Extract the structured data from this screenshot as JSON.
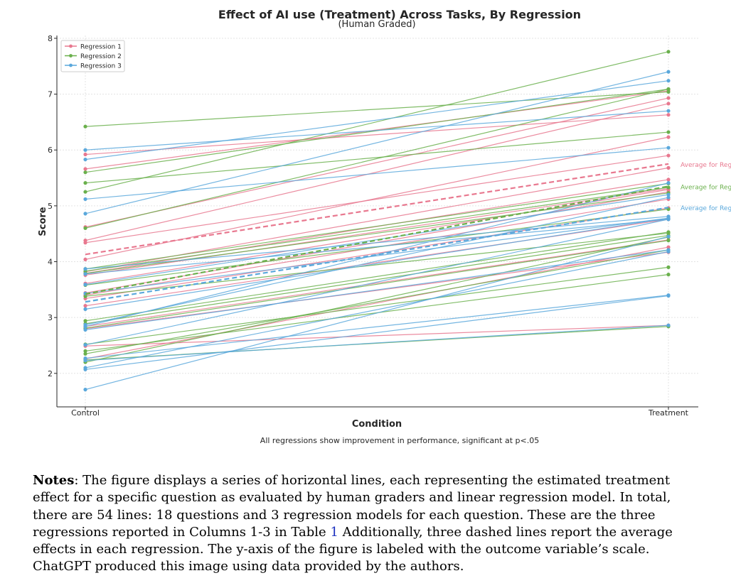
{
  "chart_data": {
    "type": "line",
    "title": "Effect of AI use (Treatment) Across Tasks, By Regression",
    "subtitle": "(Human Graded)",
    "xlabel": "Condition",
    "ylabel": "Score",
    "categories": [
      "Control",
      "Treatment"
    ],
    "ylim": [
      1.4,
      8.05
    ],
    "yticks": [
      2,
      3,
      4,
      5,
      6,
      7,
      8
    ],
    "grid": true,
    "legend": {
      "placement": "top-left",
      "entries": [
        "Regression 1",
        "Regression 2",
        "Regression 3"
      ]
    },
    "caption": "All regressions show improvement in performance, significant at p<.05",
    "series": [
      {
        "name": "Regression 1",
        "color": "#e8788f",
        "lines": [
          [
            5.92,
            6.63
          ],
          [
            5.66,
            7.06
          ],
          [
            4.62,
            6.93
          ],
          [
            4.38,
            6.83
          ],
          [
            4.34,
            5.9
          ],
          [
            4.04,
            6.23
          ],
          [
            3.82,
            5.68
          ],
          [
            3.79,
            5.47
          ],
          [
            3.76,
            5.31
          ],
          [
            3.61,
            5.29
          ],
          [
            3.44,
            5.25
          ],
          [
            3.4,
            5.12
          ],
          [
            3.34,
            4.96
          ],
          [
            3.21,
            4.76
          ],
          [
            2.84,
            4.39
          ],
          [
            2.8,
            4.17
          ],
          [
            2.49,
            2.86
          ],
          [
            2.26,
            4.26
          ]
        ],
        "average": [
          4.13,
          5.75
        ],
        "average_label": "Average for Reg"
      },
      {
        "name": "Regression 2",
        "color": "#6ab04c",
        "lines": [
          [
            6.42,
            7.04
          ],
          [
            5.6,
            7.09
          ],
          [
            5.41,
            6.32
          ],
          [
            5.25,
            7.76
          ],
          [
            4.6,
            7.09
          ],
          [
            3.87,
            5.4
          ],
          [
            3.83,
            5.33
          ],
          [
            3.79,
            5.23
          ],
          [
            3.58,
            4.94
          ],
          [
            3.38,
            4.51
          ],
          [
            2.94,
            4.53
          ],
          [
            2.89,
            4.47
          ],
          [
            2.81,
            4.38
          ],
          [
            2.52,
            3.9
          ],
          [
            2.4,
            3.77
          ],
          [
            2.35,
            4.21
          ],
          [
            2.24,
            2.84
          ],
          [
            2.2,
            4.44
          ]
        ],
        "average": [
          3.42,
          5.35
        ],
        "average_label": "Average for Reg"
      },
      {
        "name": "Regression 3",
        "color": "#5aa8dc",
        "lines": [
          [
            6.0,
            6.7
          ],
          [
            5.83,
            7.24
          ],
          [
            5.12,
            6.04
          ],
          [
            4.86,
            7.4
          ],
          [
            3.87,
            4.81
          ],
          [
            3.78,
            4.76
          ],
          [
            3.59,
            5.2
          ],
          [
            3.43,
            4.78
          ],
          [
            3.15,
            4.78
          ],
          [
            2.87,
            5.15
          ],
          [
            2.84,
            5.41
          ],
          [
            2.78,
            4.21
          ],
          [
            2.51,
            4.76
          ],
          [
            2.27,
            3.4
          ],
          [
            2.23,
            2.86
          ],
          [
            2.1,
            4.18
          ],
          [
            2.07,
            3.39
          ],
          [
            1.71,
            4.45
          ]
        ],
        "average": [
          3.28,
          4.97
        ],
        "average_label": "Average for Reg"
      }
    ]
  },
  "notes": {
    "label": "Notes",
    "text_before_ref": ": The figure displays a series of horizontal lines, each representing the estimated treatment effect for a specific question as evaluated by human graders and linear regression model. In total, there are 54 lines: 18 questions and 3 regression models for each question. These are the three regressions reported in Columns 1-3 in Table ",
    "ref": "1",
    "text_after_ref": " Additionally, three dashed lines report the average effects in each regression. The y-axis of the figure is labeled with the outcome variable’s scale. ChatGPT produced this image using data provided by the authors."
  }
}
